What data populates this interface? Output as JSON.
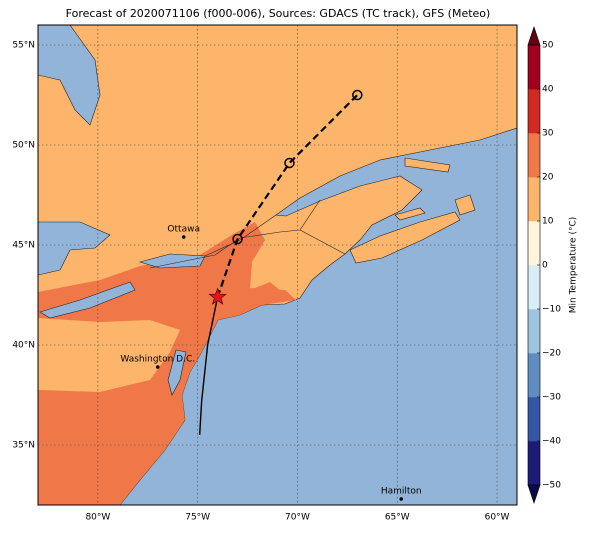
{
  "title": "Forecast of 2020071106 (f000-006), Sources: GDACS (TC track), GFS (Meteo)",
  "map": {
    "lonlim": [
      -83,
      -59
    ],
    "latlim": [
      32,
      56
    ],
    "grid": true,
    "lon_ticks": [
      {
        "value": -80,
        "label": "80°W"
      },
      {
        "value": -75,
        "label": "75°W"
      },
      {
        "value": -70,
        "label": "70°W"
      },
      {
        "value": -65,
        "label": "65°W"
      },
      {
        "value": -60,
        "label": "60°W"
      }
    ],
    "lat_ticks": [
      {
        "value": 35,
        "label": "35°N"
      },
      {
        "value": 40,
        "label": "40°N"
      },
      {
        "value": 45,
        "label": "45°N"
      },
      {
        "value": 50,
        "label": "50°N"
      },
      {
        "value": 55,
        "label": "55°N"
      }
    ],
    "cities": [
      {
        "name": "Ottawa",
        "lon": -75.7,
        "lat": 45.4
      },
      {
        "name": "Washington D.C.",
        "lon": -77.0,
        "lat": 38.9
      },
      {
        "name": "Hamilton",
        "lon": -64.8,
        "lat": 32.3
      }
    ],
    "track": {
      "observed": {
        "lon": [
          -74.9,
          -74.8,
          -74.5,
          -74.0
        ],
        "lat": [
          35.5,
          37.2,
          40.0,
          42.4
        ]
      },
      "current": {
        "lon": -74.0,
        "lat": 42.4
      },
      "forecast": {
        "lon": [
          -74.0,
          -73.0,
          -70.4,
          -67.0
        ],
        "lat": [
          42.4,
          45.3,
          49.1,
          52.5
        ]
      }
    }
  },
  "colorbar": {
    "label": "Min Temperature (°C)",
    "ticks": [
      {
        "value": -50,
        "label": "−50"
      },
      {
        "value": -40,
        "label": "−40"
      },
      {
        "value": -30,
        "label": "−30"
      },
      {
        "value": -20,
        "label": "−20"
      },
      {
        "value": -10,
        "label": "−10"
      },
      0,
      10,
      20,
      30,
      40,
      50
    ],
    "colors": [
      "#1c1c78",
      "#3556a4",
      "#5f8dc2",
      "#9fc4e0",
      "#d9edf6",
      "#fff4dc",
      "#fdb46b",
      "#f07848",
      "#d22a22",
      "#a0001e"
    ],
    "extend_colors": [
      "#0a0a4a",
      "#67000d"
    ]
  }
}
